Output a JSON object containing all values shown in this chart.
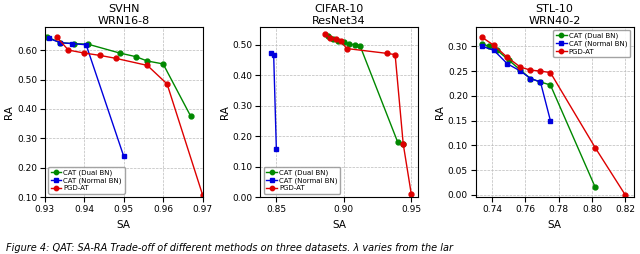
{
  "plots": [
    {
      "title": "SVHN\nWRN16-8",
      "xlabel": "SA",
      "ylabel": "RA",
      "xlim": [
        0.93,
        0.97
      ],
      "ylim": [
        0.1,
        0.68
      ],
      "xticks": [
        0.93,
        0.94,
        0.95,
        0.96,
        0.97
      ],
      "yticks": [
        0.1,
        0.2,
        0.3,
        0.4,
        0.5,
        0.6
      ],
      "series": [
        {
          "label": "CAT (Dual BN)",
          "color": "#008800",
          "marker": "o",
          "x": [
            0.9305,
            0.934,
            0.9375,
            0.941,
            0.949,
            0.953,
            0.956,
            0.96,
            0.967
          ],
          "y": [
            0.645,
            0.625,
            0.622,
            0.62,
            0.59,
            0.578,
            0.563,
            0.553,
            0.375
          ]
        },
        {
          "label": "CAT (Normal BN)",
          "color": "#0000dd",
          "marker": "s",
          "x": [
            0.931,
            0.934,
            0.937,
            0.9405,
            0.95
          ],
          "y": [
            0.64,
            0.625,
            0.622,
            0.618,
            0.24
          ]
        },
        {
          "label": "PGD-AT",
          "color": "#dd0000",
          "marker": "o",
          "x": [
            0.933,
            0.936,
            0.94,
            0.944,
            0.948,
            0.956,
            0.961,
            0.97
          ],
          "y": [
            0.645,
            0.6,
            0.59,
            0.582,
            0.572,
            0.548,
            0.485,
            0.108
          ]
        }
      ]
    },
    {
      "title": "CIFAR-10\nResNet34",
      "xlabel": "SA",
      "ylabel": "RA",
      "xlim": [
        0.838,
        0.955
      ],
      "ylim": [
        0.0,
        0.56
      ],
      "xticks": [
        0.85,
        0.9,
        0.95
      ],
      "yticks": [
        0.0,
        0.1,
        0.2,
        0.3,
        0.4,
        0.5
      ],
      "series": [
        {
          "label": "CAT (Dual BN)",
          "color": "#008800",
          "marker": "o",
          "x": [
            0.888,
            0.892,
            0.896,
            0.9,
            0.904,
            0.908,
            0.912,
            0.94,
            0.944
          ],
          "y": [
            0.53,
            0.518,
            0.512,
            0.508,
            0.503,
            0.5,
            0.497,
            0.18,
            0.175
          ]
        },
        {
          "label": "CAT (Normal BN)",
          "color": "#0000dd",
          "marker": "s",
          "x": [
            0.846,
            0.848,
            0.85
          ],
          "y": [
            0.474,
            0.468,
            0.158
          ]
        },
        {
          "label": "PGD-AT",
          "color": "#dd0000",
          "marker": "o",
          "x": [
            0.886,
            0.89,
            0.894,
            0.898,
            0.902,
            0.932,
            0.938,
            0.944,
            0.95
          ],
          "y": [
            0.535,
            0.524,
            0.518,
            0.512,
            0.488,
            0.472,
            0.468,
            0.175,
            0.01
          ]
        }
      ]
    },
    {
      "title": "STL-10\nWRN40-2",
      "xlabel": "SA",
      "ylabel": "RA",
      "xlim": [
        0.73,
        0.825
      ],
      "ylim": [
        -0.005,
        0.34
      ],
      "xticks": [
        0.74,
        0.76,
        0.78,
        0.8,
        0.82
      ],
      "yticks": [
        0.0,
        0.05,
        0.1,
        0.15,
        0.2,
        0.25,
        0.3
      ],
      "series": [
        {
          "label": "CAT (Dual BN)",
          "color": "#008800",
          "marker": "o",
          "x": [
            0.734,
            0.738,
            0.743,
            0.75,
            0.757,
            0.763,
            0.769,
            0.775,
            0.802
          ],
          "y": [
            0.305,
            0.3,
            0.292,
            0.272,
            0.252,
            0.235,
            0.228,
            0.222,
            0.015
          ]
        },
        {
          "label": "CAT (Normal BN)",
          "color": "#0000dd",
          "marker": "s",
          "x": [
            0.734,
            0.741,
            0.749,
            0.757,
            0.763,
            0.769,
            0.775
          ],
          "y": [
            0.3,
            0.292,
            0.265,
            0.25,
            0.235,
            0.228,
            0.15
          ]
        },
        {
          "label": "PGD-AT",
          "color": "#dd0000",
          "marker": "o",
          "x": [
            0.734,
            0.741,
            0.749,
            0.757,
            0.763,
            0.769,
            0.775,
            0.802,
            0.82
          ],
          "y": [
            0.318,
            0.302,
            0.278,
            0.258,
            0.252,
            0.25,
            0.247,
            0.095,
            0.0
          ]
        }
      ]
    }
  ],
  "caption": "Figure 4: QAT: SA-RA Trade-off of different methods on three datasets. λ varies from the lar",
  "legend_positions": [
    "lower left",
    "lower left",
    "upper right"
  ],
  "fig_bg": "#ffffff"
}
